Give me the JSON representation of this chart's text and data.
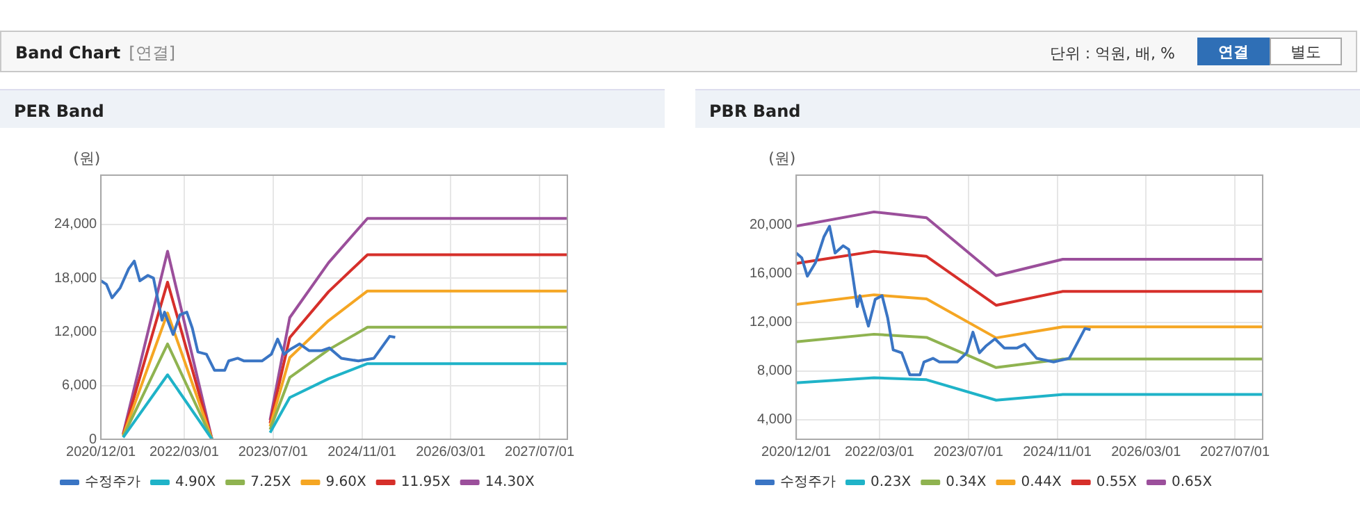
{
  "chart_data": [
    {
      "type": "other",
      "title": "Band Chart",
      "annotations": [
        "[연결]",
        "단위 : 억원, 배, %",
        "연결",
        "별도"
      ]
    },
    {
      "type": "line",
      "title": "PER Band",
      "ylabel": "(원)",
      "legend": "bottom",
      "grid": true,
      "marker": "none",
      "line_style": "solid",
      "xlim": [
        "2020-12-01",
        "2027-12-01"
      ],
      "ylim": [
        0,
        29500
      ],
      "xticks": [
        {
          "value": "2020-12-01",
          "label": "2020/12/01"
        },
        {
          "value": "2022-03-01",
          "label": "2022/03/01"
        },
        {
          "value": "2023-07-01",
          "label": "2023/07/01"
        },
        {
          "value": "2024-11-01",
          "label": "2024/11/01"
        },
        {
          "value": "2026-03-01",
          "label": "2026/03/01"
        },
        {
          "value": "2027-07-01",
          "label": "2027/07/01"
        }
      ],
      "yticks": [
        0,
        {
          "value": 6000,
          "label": "6,000"
        },
        {
          "value": 12000,
          "label": "12,000"
        },
        {
          "value": 18000,
          "label": "18,000"
        },
        {
          "value": 24000,
          "label": "24,000"
        }
      ],
      "x": [
        "2021-04-01",
        "2021-12-01",
        "2022-08-01",
        "2023-01-01",
        "2023-06-15",
        "2023-10-01",
        "2024-05-01",
        "2024-12-01",
        "2027-12-01"
      ],
      "series": [
        {
          "name": "수정주가",
          "color": "#3a75c4",
          "x": [
            "2020-12-01",
            "2021-01-01",
            "2021-02-01",
            "2021-03-15",
            "2021-05-01",
            "2021-06-01",
            "2021-07-01",
            "2021-08-15",
            "2021-09-15",
            "2021-11-01",
            "2021-11-15",
            "2021-12-01",
            "2022-01-01",
            "2022-02-08",
            "2022-03-15",
            "2022-04-15",
            "2022-05-15",
            "2022-07-01",
            "2022-08-15",
            "2022-10-10",
            "2022-11-01",
            "2022-12-20",
            "2023-01-25",
            "2023-05-01",
            "2023-06-22",
            "2023-07-26",
            "2023-09-01",
            "2023-10-05",
            "2023-11-25",
            "2024-01-15",
            "2024-03-25",
            "2024-05-05",
            "2024-07-10",
            "2024-10-12",
            "2025-01-06",
            "2025-04-01",
            "2025-05-01"
          ],
          "values": [
            17700,
            17300,
            15800,
            16900,
            19050,
            19900,
            17700,
            18300,
            18000,
            13300,
            14200,
            13300,
            11700,
            13900,
            14200,
            12400,
            9750,
            9500,
            7700,
            7700,
            8750,
            9050,
            8750,
            8750,
            9500,
            11200,
            9500,
            10050,
            10650,
            9900,
            9900,
            10200,
            9050,
            8750,
            9050,
            11500,
            11400
          ]
        },
        {
          "name": "4.90X",
          "color": "#1fb3c8",
          "values": [
            200,
            7200,
            0,
            null,
            735,
            4655,
            6760,
            8450,
            8450
          ]
        },
        {
          "name": "7.25X",
          "color": "#8fb350",
          "values": [
            300,
            10650,
            0,
            null,
            1090,
            6890,
            10005,
            12510,
            12510
          ]
        },
        {
          "name": "9.60X",
          "color": "#f5a623",
          "values": [
            400,
            14100,
            0,
            null,
            1440,
            9120,
            13250,
            16560,
            16560
          ]
        },
        {
          "name": "11.95X",
          "color": "#d62f2a",
          "values": [
            500,
            17550,
            0,
            null,
            1790,
            11350,
            16490,
            20610,
            20610
          ]
        },
        {
          "name": "14.30X",
          "color": "#9b4f9b",
          "values": [
            600,
            21000,
            0,
            null,
            2145,
            13585,
            19730,
            24670,
            24670
          ]
        }
      ]
    },
    {
      "type": "line",
      "title": "PBR Band",
      "ylabel": "(원)",
      "legend": "bottom",
      "grid": true,
      "marker": "none",
      "line_style": "solid",
      "xlim": [
        "2020-12-01",
        "2027-12-01"
      ],
      "ylim": [
        2400,
        24100
      ],
      "xticks": [
        {
          "value": "2020-12-01",
          "label": "2020/12/01"
        },
        {
          "value": "2022-03-01",
          "label": "2022/03/01"
        },
        {
          "value": "2023-07-01",
          "label": "2023/07/01"
        },
        {
          "value": "2024-11-01",
          "label": "2024/11/01"
        },
        {
          "value": "2026-03-01",
          "label": "2026/03/01"
        },
        {
          "value": "2027-07-01",
          "label": "2027/07/01"
        }
      ],
      "yticks": [
        {
          "value": 4000,
          "label": "4,000"
        },
        {
          "value": 8000,
          "label": "8,000"
        },
        {
          "value": 12000,
          "label": "12,000"
        },
        {
          "value": 16000,
          "label": "16,000"
        },
        {
          "value": 20000,
          "label": "20,000"
        }
      ],
      "x": [
        "2020-12-01",
        "2022-02-01",
        "2022-11-15",
        "2023-12-01",
        "2024-12-01",
        "2027-12-01"
      ],
      "series": [
        {
          "name": "수정주가",
          "color": "#3a75c4",
          "x": [
            "2020-12-01",
            "2021-01-01",
            "2021-02-01",
            "2021-03-15",
            "2021-05-01",
            "2021-06-01",
            "2021-07-01",
            "2021-08-15",
            "2021-09-15",
            "2021-11-01",
            "2021-11-15",
            "2021-12-01",
            "2022-01-01",
            "2022-02-08",
            "2022-03-15",
            "2022-04-15",
            "2022-05-15",
            "2022-07-01",
            "2022-08-15",
            "2022-10-10",
            "2022-11-01",
            "2022-12-20",
            "2023-01-25",
            "2023-05-01",
            "2023-06-22",
            "2023-07-26",
            "2023-09-01",
            "2023-10-05",
            "2023-11-25",
            "2024-01-15",
            "2024-03-25",
            "2024-05-05",
            "2024-07-10",
            "2024-10-12",
            "2025-01-06",
            "2025-04-01",
            "2025-05-01"
          ],
          "values": [
            17700,
            17300,
            15800,
            16900,
            19050,
            19900,
            17700,
            18300,
            18000,
            13300,
            14200,
            13300,
            11700,
            13900,
            14200,
            12400,
            9750,
            9500,
            7700,
            7700,
            8750,
            9050,
            8750,
            8750,
            9500,
            11200,
            9500,
            10050,
            10650,
            9900,
            9900,
            10200,
            9050,
            8750,
            9050,
            11500,
            11400
          ]
        },
        {
          "name": "0.23X",
          "color": "#1fb3c8",
          "values": [
            7045,
            7460,
            7290,
            5610,
            6080,
            6080
          ]
        },
        {
          "name": "0.34X",
          "color": "#8fb350",
          "values": [
            10410,
            11030,
            10770,
            8290,
            8990,
            8990
          ]
        },
        {
          "name": "0.44X",
          "color": "#f5a623",
          "values": [
            13480,
            14270,
            13940,
            10730,
            11640,
            11640
          ]
        },
        {
          "name": "0.55X",
          "color": "#d62f2a",
          "values": [
            16850,
            17840,
            17430,
            13410,
            14550,
            14550
          ]
        },
        {
          "name": "0.65X",
          "color": "#9b4f9b",
          "values": [
            19910,
            21080,
            20600,
            15850,
            17190,
            17190
          ]
        }
      ]
    }
  ]
}
